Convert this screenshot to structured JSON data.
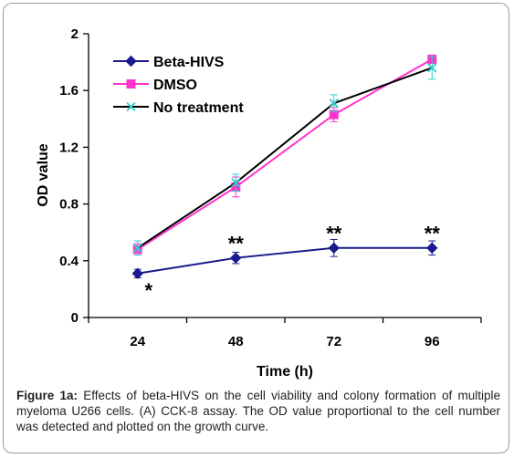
{
  "chart_data": {
    "type": "line",
    "xlabel": "Time (h)",
    "ylabel": "OD value",
    "categories": [
      "24",
      "48",
      "72",
      "96"
    ],
    "ylim": [
      0,
      2
    ],
    "yticks": [
      "0",
      "0.4",
      "0.8",
      "1.2",
      "1.6",
      "2"
    ],
    "grid": false,
    "legend_position": "top-left",
    "series": [
      {
        "name": "Beta-HIVS",
        "values": [
          0.31,
          0.42,
          0.49,
          0.49
        ],
        "errors": [
          0.03,
          0.04,
          0.06,
          0.05
        ],
        "color": "#1a1a8c",
        "marker": "diamond"
      },
      {
        "name": "DMSO",
        "values": [
          0.48,
          0.92,
          1.43,
          1.82
        ],
        "errors": [
          0.04,
          0.07,
          0.05,
          0.03
        ],
        "color": "#ff33cc",
        "marker": "square"
      },
      {
        "name": "No treatment",
        "values": [
          0.49,
          0.95,
          1.51,
          1.76
        ],
        "errors": [
          0.05,
          0.06,
          0.06,
          0.08
        ],
        "color": "#000000",
        "marker": "x",
        "marker_color": "#33cccc"
      }
    ],
    "annotations": [
      {
        "category": "24",
        "text": "*",
        "value": 0.22
      },
      {
        "category": "48",
        "text": "**",
        "value": 0.55
      },
      {
        "category": "72",
        "text": "**",
        "value": 0.62
      },
      {
        "category": "96",
        "text": "**",
        "value": 0.62
      }
    ]
  },
  "caption": {
    "label": "Figure 1a:",
    "text": " Effects of beta-HIVS on the cell viability and colony formation of multiple myeloma U266 cells. (A) CCK-8 assay. The OD value proportional to the cell number was detected and plotted on the growth curve."
  }
}
